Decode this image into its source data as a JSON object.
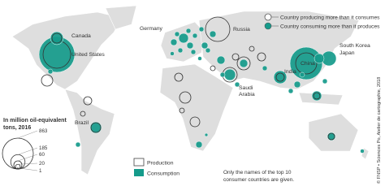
{
  "legend": {
    "title": [
      "In million oil-equivalent",
      "tons, 2016"
    ],
    "sizes": [
      863,
      185,
      60,
      20,
      1
    ],
    "production": "Production",
    "consumption": "Consumption"
  },
  "annotations": {
    "producing": "Country producing more than it consumes",
    "consuming": "Country consuming more than it produces"
  },
  "country_labels": [
    [
      "Canada"
    ],
    [
      "United States"
    ],
    [
      "Germany"
    ],
    [
      "Russia"
    ],
    [
      "China"
    ],
    [
      "South Korea"
    ],
    [
      "Japan"
    ],
    [
      "India"
    ],
    [
      "Saudi",
      "Arabia"
    ],
    [
      "Brazil"
    ]
  ],
  "note": [
    "Only the names of the top 10",
    "consumer countries are given."
  ],
  "credit": "© FNSP • Sciences Po, Atelier de cartographie, 2018"
}
